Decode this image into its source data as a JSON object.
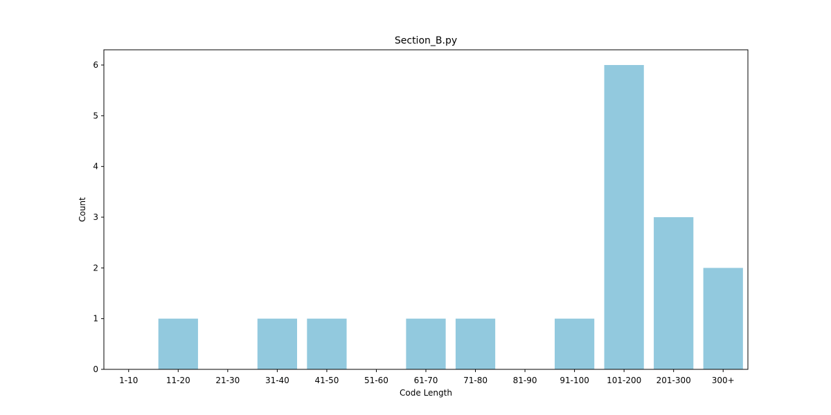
{
  "chart_data": {
    "type": "bar",
    "title": "Section_B.py",
    "xlabel": "Code Length",
    "ylabel": "Count",
    "categories": [
      "1-10",
      "11-20",
      "21-30",
      "31-40",
      "41-50",
      "51-60",
      "61-70",
      "71-80",
      "81-90",
      "91-100",
      "101-200",
      "201-300",
      "300+"
    ],
    "values": [
      0,
      1,
      0,
      1,
      1,
      0,
      1,
      1,
      0,
      1,
      6,
      3,
      2
    ],
    "ylim": [
      0,
      6.3
    ],
    "yticks": [
      0,
      1,
      2,
      3,
      4,
      5,
      6
    ],
    "bar_color": "#92c9de",
    "grid": false,
    "legend": "none"
  }
}
